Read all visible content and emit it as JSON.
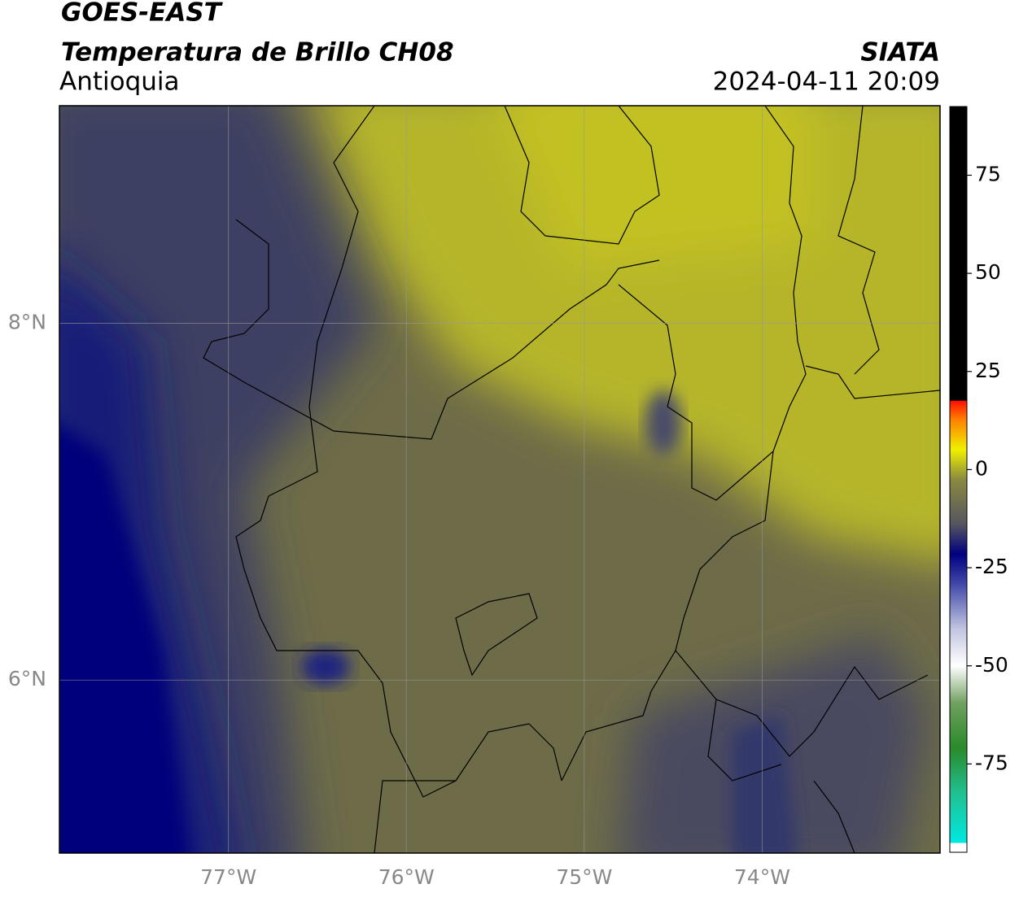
{
  "chart_data": {
    "type": "map",
    "title": "GOES-EAST",
    "subtitle": "Temperatura de Brillo CH08",
    "region": "Antioquia",
    "source": "SIATA",
    "timestamp": "2024-04-11 20:09",
    "xlim": [
      -77.95,
      -73
    ],
    "xticks": [
      {
        "value": -77,
        "label": "77°W"
      },
      {
        "value": -76,
        "label": "76°W"
      },
      {
        "value": -75,
        "label": "75°W"
      },
      {
        "value": -74,
        "label": "74°W"
      }
    ],
    "ylim": [
      5.03,
      9.22
    ],
    "yticks": [
      {
        "value": 6,
        "label": "6°N"
      },
      {
        "value": 8,
        "label": "8°N"
      }
    ],
    "grid": true,
    "colorbar": {
      "lim": [
        -97.5,
        92.5
      ],
      "ticks": [
        75,
        50,
        25,
        0,
        -25,
        -50,
        -75
      ]
    }
  }
}
